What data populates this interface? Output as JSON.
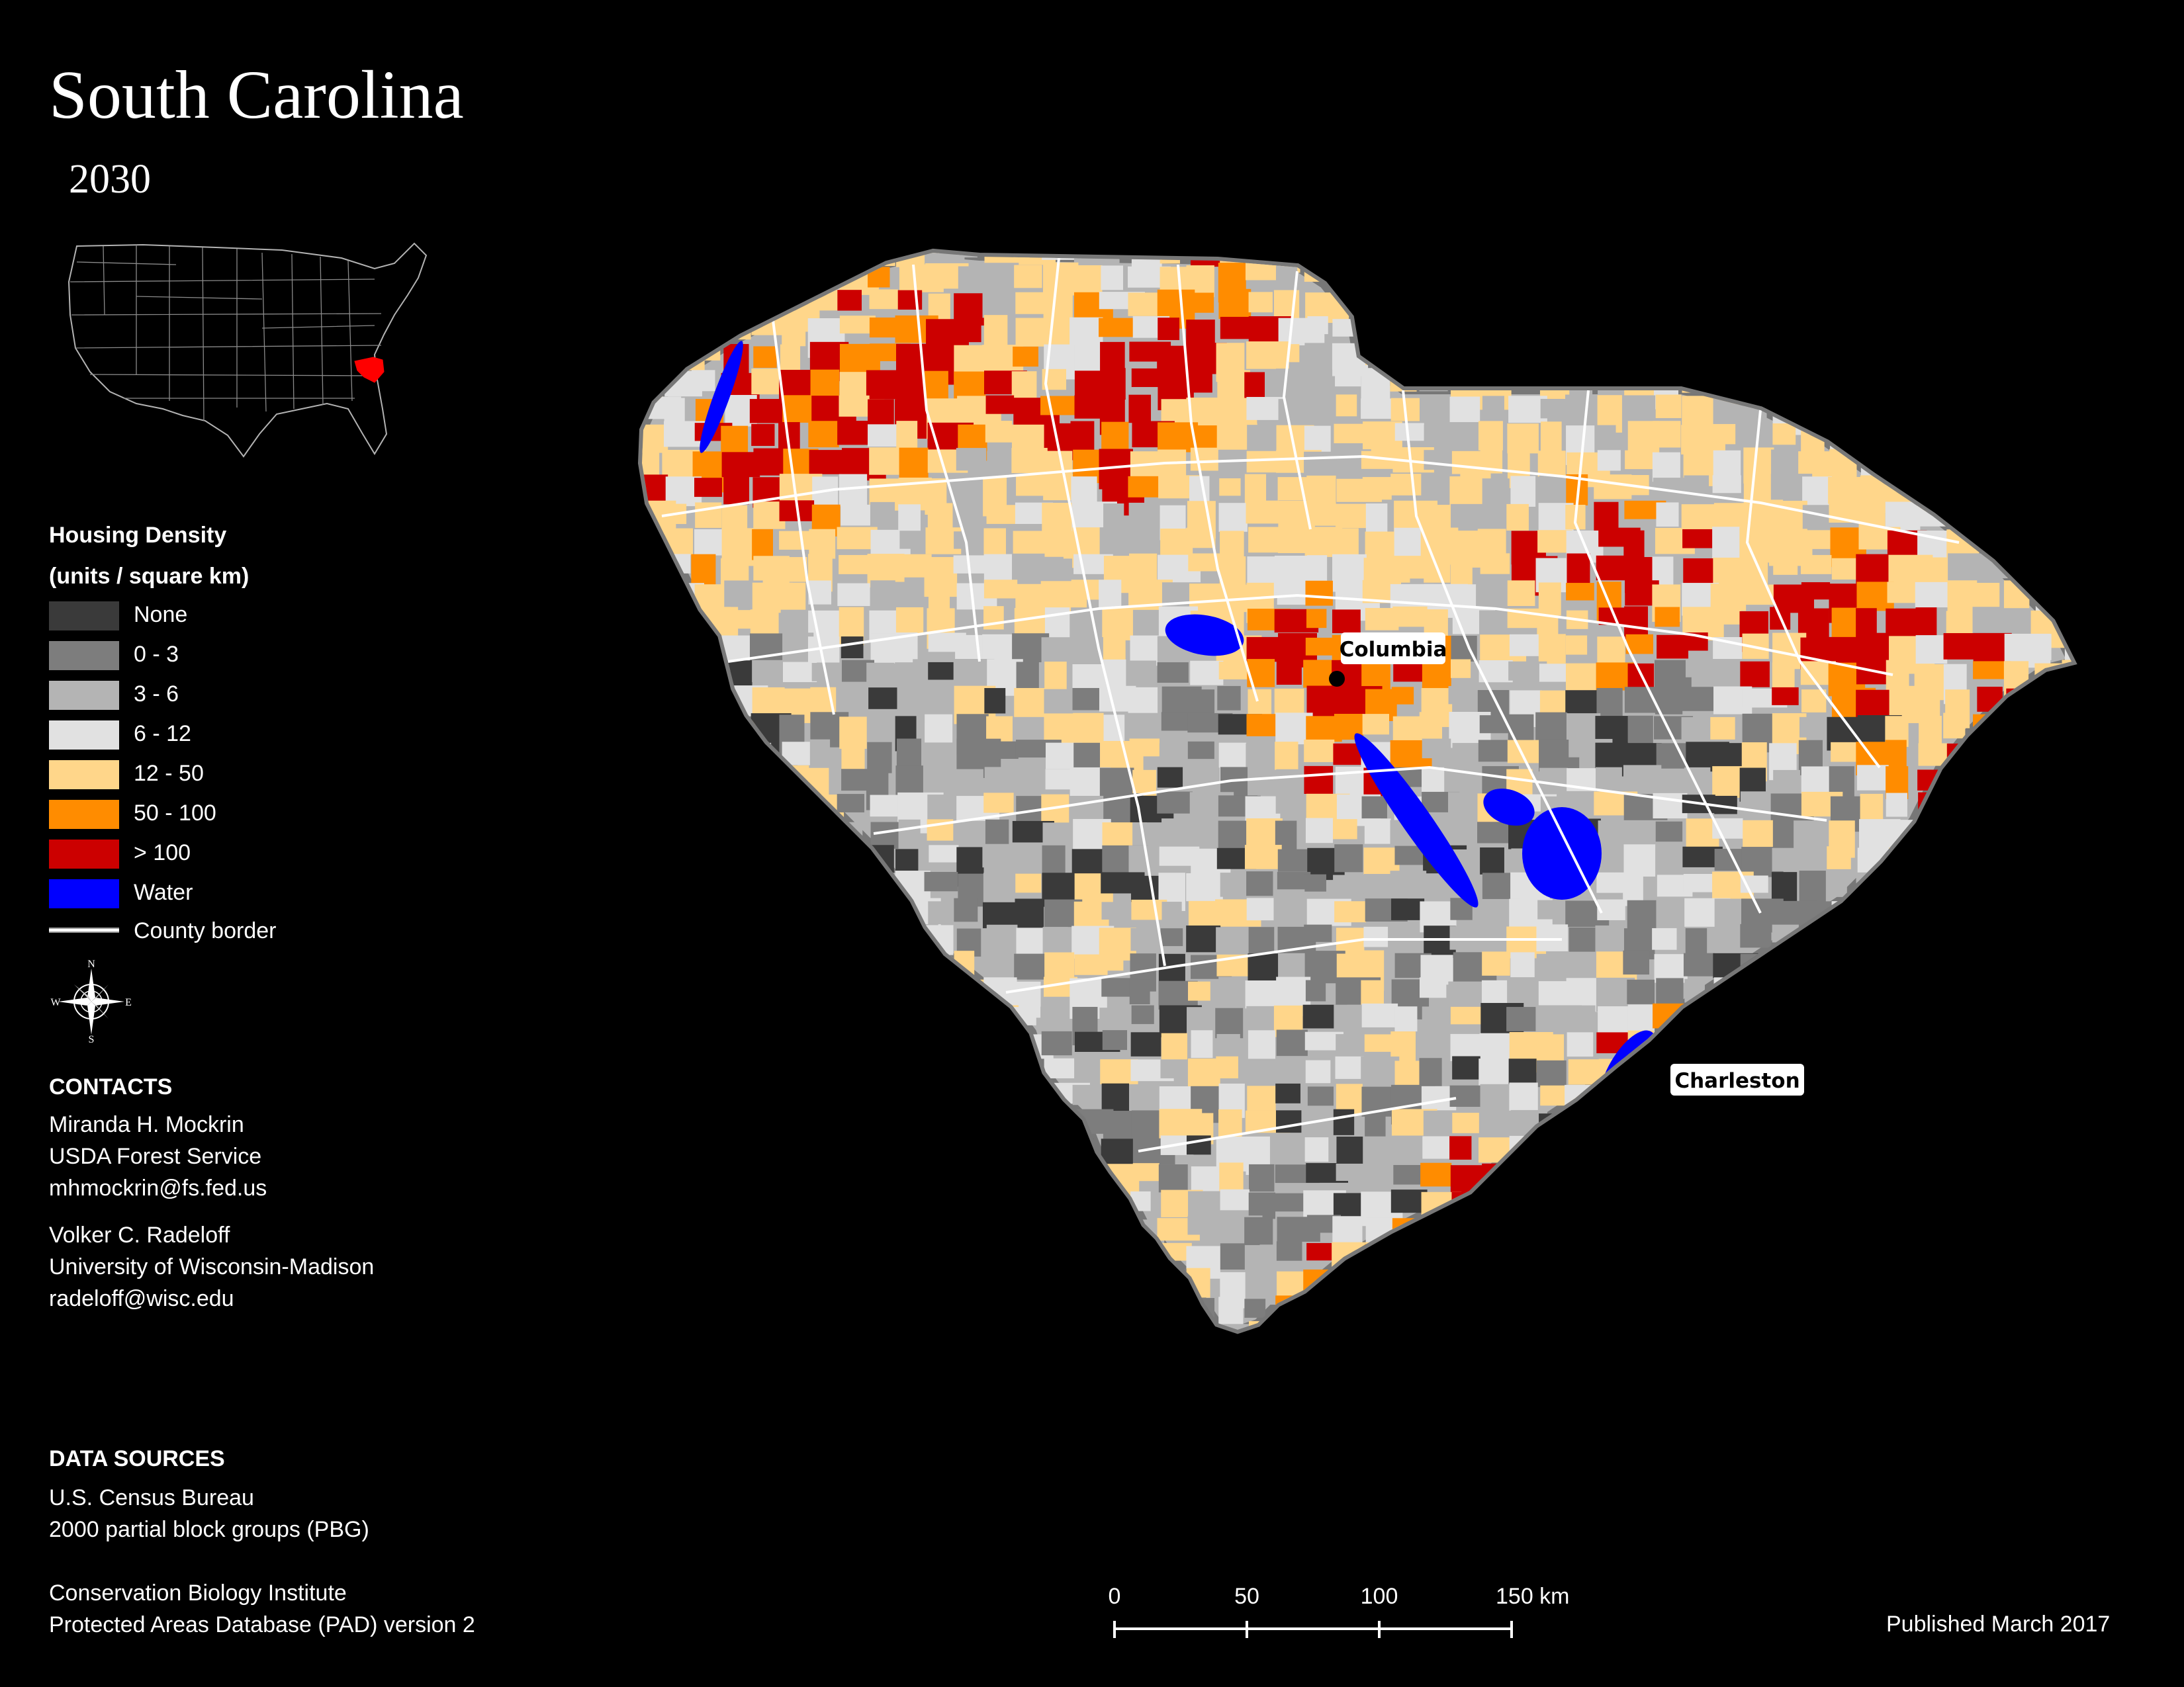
{
  "title": "South Carolina",
  "subtitle": "2030",
  "legend": {
    "title_line1": "Housing Density",
    "title_line2": "(units / square km)",
    "items": [
      {
        "label": "None",
        "color": "#3a3a3a"
      },
      {
        "label": "0 - 3",
        "color": "#7d7d7d"
      },
      {
        "label": "3 - 6",
        "color": "#b4b4b4"
      },
      {
        "label": "6 - 12",
        "color": "#e1e1e1"
      },
      {
        "label": "12 - 50",
        "color": "#ffd68a"
      },
      {
        "label": "50 - 100",
        "color": "#ff8c00"
      },
      {
        "label": "> 100",
        "color": "#cc0000"
      },
      {
        "label": "Water",
        "color": "#0000ff"
      }
    ],
    "border_label": "County border"
  },
  "compass": {
    "n": "N",
    "s": "S",
    "e": "E",
    "w": "W"
  },
  "contacts": {
    "heading": "CONTACTS",
    "people": [
      {
        "name": "Miranda H. Mockrin",
        "org": "USDA Forest Service",
        "email": "mhmockrin@fs.fed.us"
      },
      {
        "name": "Volker C. Radeloff",
        "org": "University of Wisconsin-Madison",
        "email": "radeloff@wisc.edu"
      }
    ]
  },
  "data_sources": {
    "heading": "DATA SOURCES",
    "entries": [
      {
        "line1": "U.S. Census Bureau",
        "line2": "2000 partial block groups (PBG)"
      },
      {
        "line1": "Conservation Biology Institute",
        "line2": "Protected Areas Database (PAD) version 2"
      }
    ]
  },
  "scale": {
    "ticks": [
      "0",
      "50",
      "100",
      "150 km"
    ]
  },
  "published": "Published March 2017",
  "cities": [
    {
      "name": "Columbia",
      "icon": "city-dot-icon"
    },
    {
      "name": "Charleston",
      "icon": "city-dot-icon"
    }
  ],
  "inset": {
    "highlight_color": "#ff0000",
    "icon": "us-states-outline"
  }
}
